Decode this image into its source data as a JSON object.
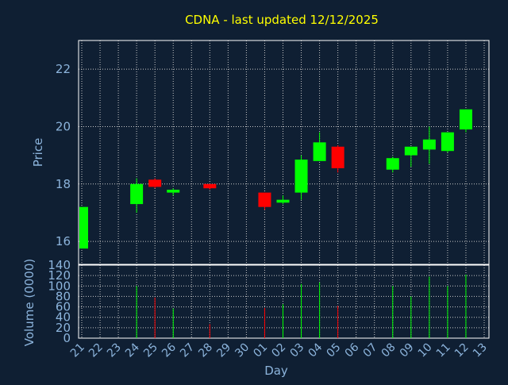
{
  "chart_data": {
    "type": "candlestick",
    "title": "CDNA - last updated 12/12/2025",
    "xlabel": "Day",
    "price_ylabel": "Price",
    "volume_ylabel": "Volume (0000)",
    "price_yticks": [
      16,
      18,
      20,
      22
    ],
    "price_ylim": [
      15.2,
      23.0
    ],
    "volume_yticks": [
      0,
      20,
      40,
      60,
      80,
      100,
      120,
      140
    ],
    "volume_ylim": [
      0,
      140
    ],
    "x_labels": [
      "21",
      "22",
      "23",
      "24",
      "25",
      "26",
      "27",
      "28",
      "29",
      "30",
      "01",
      "02",
      "03",
      "04",
      "05",
      "06",
      "07",
      "08",
      "09",
      "10",
      "11",
      "12",
      "13"
    ],
    "colors": {
      "up": "#00ff00",
      "down": "#ff0000",
      "grid": "#c8c8c8",
      "background": "#0f1f33"
    },
    "candles": [
      {
        "day": "21",
        "open": 15.75,
        "close": 17.2,
        "high": 17.2,
        "low": 15.75,
        "volume": 0
      },
      {
        "day": "24",
        "open": 17.3,
        "close": 18.0,
        "high": 18.2,
        "low": 17.0,
        "volume": 100
      },
      {
        "day": "25",
        "open": 18.15,
        "close": 17.9,
        "high": 18.2,
        "low": 17.85,
        "volume": 78
      },
      {
        "day": "26",
        "open": 17.7,
        "close": 17.8,
        "high": 17.85,
        "low": 17.6,
        "volume": 57
      },
      {
        "day": "28",
        "open": 18.0,
        "close": 17.85,
        "high": 18.0,
        "low": 17.8,
        "volume": 27
      },
      {
        "day": "01",
        "open": 17.7,
        "close": 17.2,
        "high": 17.7,
        "low": 17.1,
        "volume": 58
      },
      {
        "day": "02",
        "open": 17.35,
        "close": 17.45,
        "high": 17.6,
        "low": 17.3,
        "volume": 65
      },
      {
        "day": "03",
        "open": 17.7,
        "close": 18.85,
        "high": 19.0,
        "low": 17.45,
        "volume": 104
      },
      {
        "day": "04",
        "open": 18.8,
        "close": 19.45,
        "high": 19.8,
        "low": 18.8,
        "volume": 107
      },
      {
        "day": "05",
        "open": 19.3,
        "close": 18.55,
        "high": 19.35,
        "low": 18.4,
        "volume": 62
      },
      {
        "day": "08",
        "open": 18.5,
        "close": 18.9,
        "high": 18.95,
        "low": 18.4,
        "volume": 100
      },
      {
        "day": "09",
        "open": 19.0,
        "close": 19.3,
        "high": 19.3,
        "low": 18.6,
        "volume": 80
      },
      {
        "day": "10",
        "open": 19.2,
        "close": 19.55,
        "high": 20.0,
        "low": 18.7,
        "volume": 118
      },
      {
        "day": "11",
        "open": 19.15,
        "close": 19.8,
        "high": 19.8,
        "low": 19.1,
        "volume": 100
      },
      {
        "day": "12",
        "open": 19.9,
        "close": 20.6,
        "high": 20.6,
        "low": 19.8,
        "volume": 122
      }
    ]
  }
}
